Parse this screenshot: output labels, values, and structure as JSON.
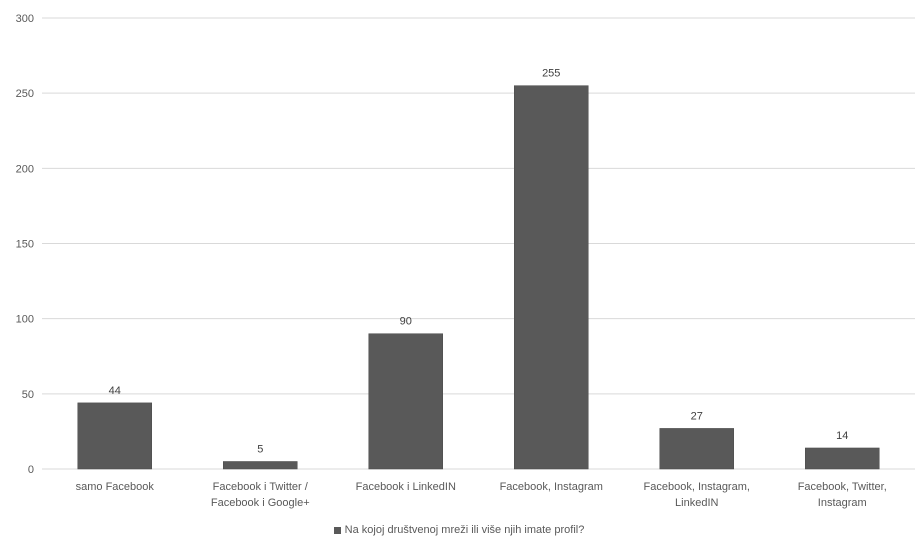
{
  "chart_data": {
    "type": "bar",
    "categories": [
      [
        "samo Facebook"
      ],
      [
        "Facebook i Twitter /",
        "Facebook i Google+"
      ],
      [
        "Facebook i LinkedIN"
      ],
      [
        "Facebook, Instagram"
      ],
      [
        "Facebook, Instagram,",
        "LinkedIN"
      ],
      [
        "Facebook, Twitter,",
        "Instagram"
      ]
    ],
    "series": [
      {
        "name": "Na kojoj društvenoj mreži ili više njih imate profil?",
        "values": [
          44,
          5,
          90,
          255,
          27,
          14
        ]
      }
    ],
    "ylim": [
      0,
      300
    ],
    "yticks": [
      0,
      50,
      100,
      150,
      200,
      250,
      300
    ],
    "grid": true,
    "legend": "bottom",
    "data_labels": true,
    "colors": {
      "bar": "#595959",
      "bar_edge": "#4a4a4a",
      "grid": "#d9d9d9",
      "text": "#595959",
      "label": "#404040"
    }
  }
}
